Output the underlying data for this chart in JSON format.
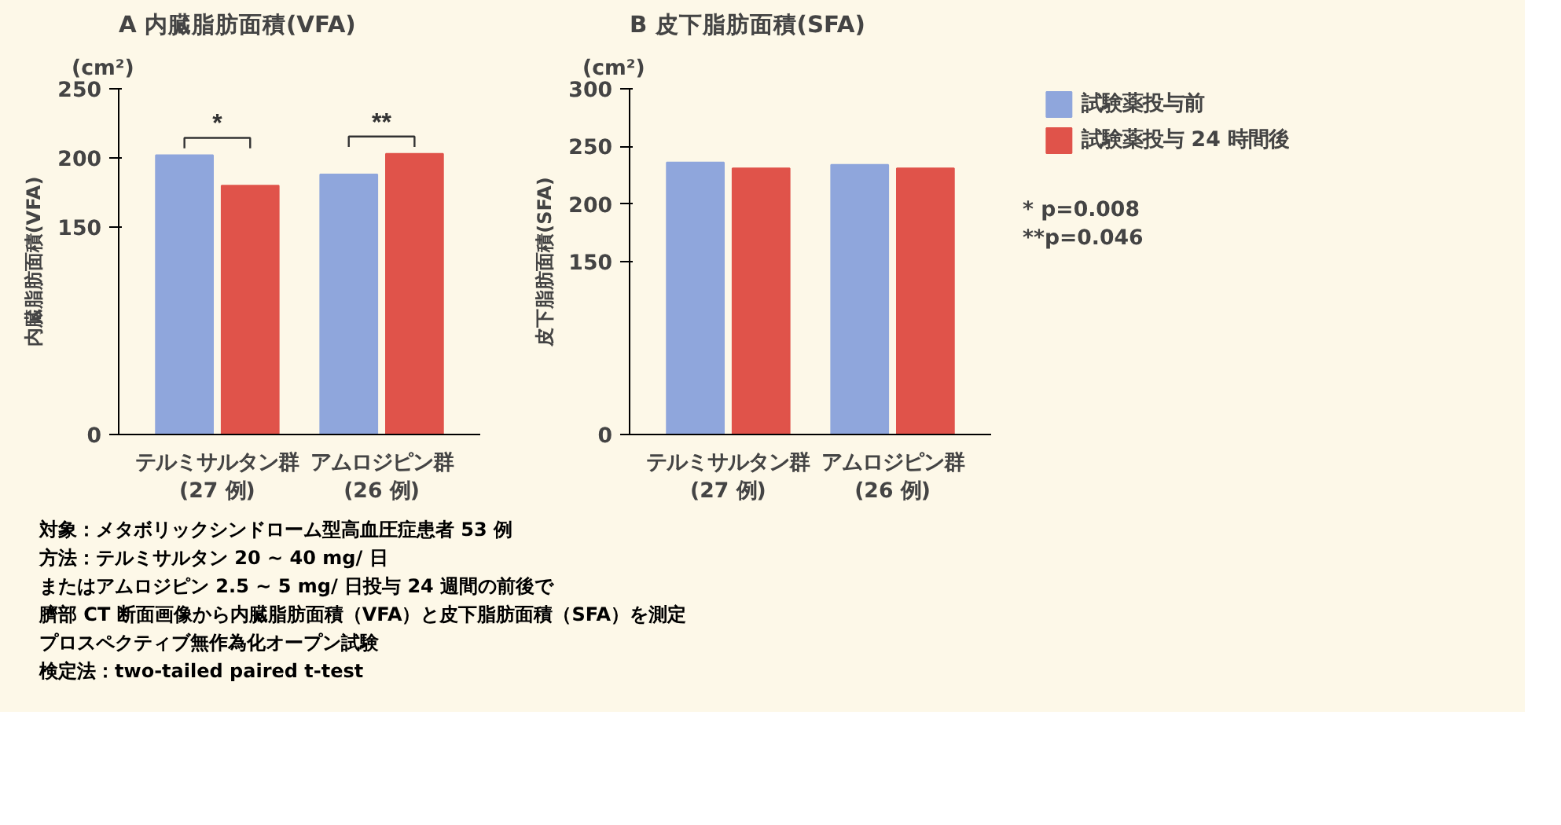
{
  "chart_data": [
    {
      "type": "bar",
      "title": "A 内臓脂肪面積(VFA)",
      "ylabel": "内臓脂肪面積(VFA)",
      "categories": [
        "テルミサルタン群\n(27 例)",
        "アムロジピン群\n(26 例)"
      ],
      "series": [
        {
          "color": "#8fa6dc",
          "values": [
            202,
            188
          ]
        },
        {
          "color": "#e0534a",
          "values": [
            180,
            203
          ]
        }
      ],
      "ylim": [
        0,
        250
      ],
      "yticks": [
        0,
        150,
        200,
        250
      ],
      "grid": false,
      "annotations": [
        "(cm²)",
        "*",
        "**",
        "対象：メタボリックシンドローム型高血圧症患者 53 例",
        "方法：テルミサルタン 20 ~ 40 mg/ 日",
        "またはアムロジピン 2.5 ~ 5 mg/ 日投与 24 週間の前後で",
        "臍部 CT 断面画像から内臓脂肪面積（VFA）と皮下脂肪面積（SFA）を測定",
        "プロスペクティブ無作為化オープン試験",
        "検定法：two-tailed paired t-test"
      ]
    },
    {
      "type": "bar",
      "title": "B 皮下脂肪面積(SFA)",
      "ylabel": "皮下脂肪面積(SFA)",
      "categories": [
        "テルミサルタン群\n(27 例)",
        "アムロジピン群\n(26 例)"
      ],
      "series": [
        {
          "name": "試験薬投与前",
          "color": "#8fa6dc",
          "values": [
            236,
            234
          ]
        },
        {
          "name": "試験薬投与 24 時間後",
          "color": "#e0534a",
          "values": [
            231,
            231
          ]
        }
      ],
      "ylim": [
        0,
        300
      ],
      "yticks": [
        0,
        150,
        200,
        250,
        300
      ],
      "grid": false,
      "legend": "top right",
      "annotations": [
        "(cm²)",
        "* p=0.008",
        "**p=0.046"
      ]
    }
  ]
}
